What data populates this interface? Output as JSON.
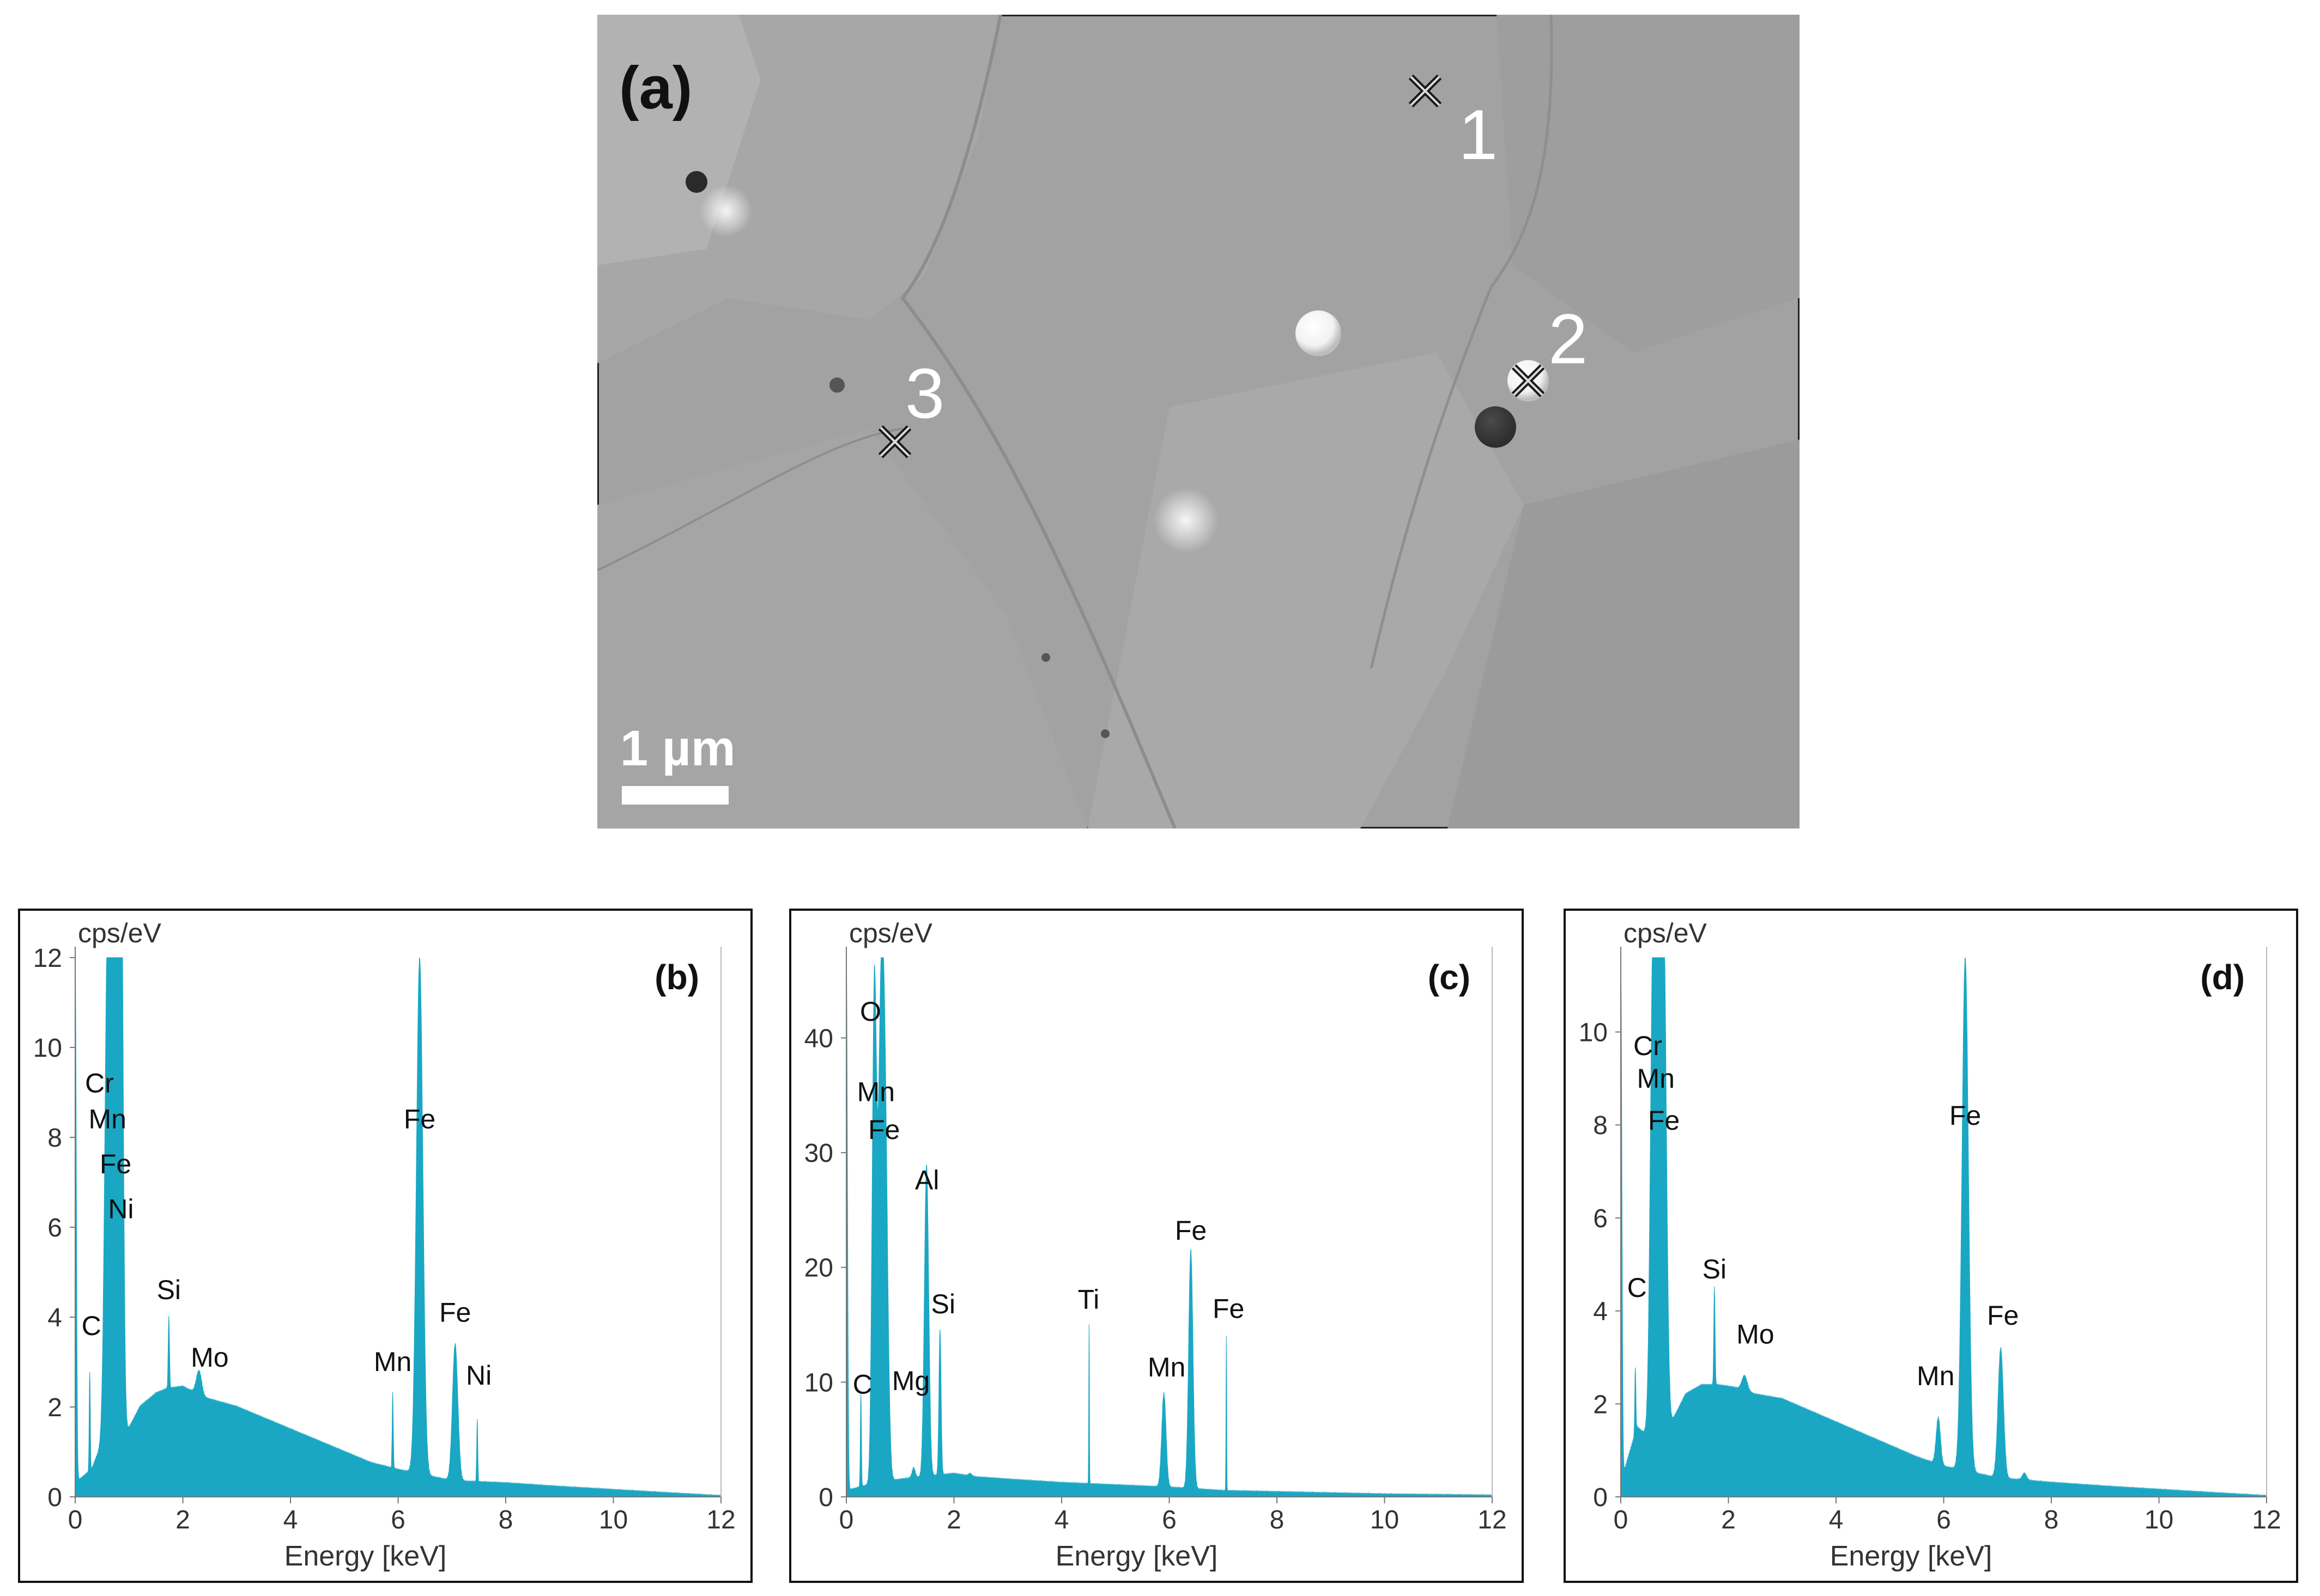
{
  "figure": {
    "sem_image": {
      "panel_label": "(a)",
      "scale_bar_label": "1 µm",
      "markers": [
        {
          "label": "1",
          "type": "cross-marker"
        },
        {
          "label": "2",
          "type": "cross-marker"
        },
        {
          "label": "3",
          "type": "cross-marker"
        }
      ]
    }
  },
  "chart_data": [
    {
      "type": "area",
      "panel_label": "(b)",
      "ylabel": "cps/eV",
      "xlabel": "Energy [keV]",
      "xlim": [
        0,
        12
      ],
      "ylim": [
        0,
        12
      ],
      "x_ticks": [
        0,
        2,
        4,
        6,
        8,
        10,
        12
      ],
      "y_ticks": [
        0,
        2,
        4,
        6,
        8,
        10,
        12
      ],
      "color": "#1aa7c4",
      "continuum": [
        [
          0,
          0.3
        ],
        [
          0.3,
          0.6
        ],
        [
          0.5,
          1.2
        ],
        [
          0.9,
          1.3
        ],
        [
          1.2,
          2.0
        ],
        [
          1.5,
          2.3
        ],
        [
          1.7,
          2.4
        ],
        [
          2.0,
          2.45
        ],
        [
          2.4,
          2.2
        ],
        [
          3.0,
          2.0
        ],
        [
          4.0,
          1.5
        ],
        [
          5.0,
          1.0
        ],
        [
          5.5,
          0.75
        ],
        [
          6.0,
          0.6
        ],
        [
          7.0,
          0.35
        ],
        [
          8.0,
          0.3
        ],
        [
          9.0,
          0.22
        ],
        [
          10.0,
          0.15
        ],
        [
          11.0,
          0.08
        ],
        [
          11.9,
          0.02
        ]
      ],
      "peaks": [
        {
          "x": 0.0,
          "y": 12.0,
          "w": 0.02,
          "label": ""
        },
        {
          "x": 0.27,
          "y": 2.8,
          "w": 0.01,
          "label": "C"
        },
        {
          "x": 0.6,
          "y": 12.0,
          "w": 0.05,
          "label": "Cr"
        },
        {
          "x": 0.7,
          "y": 12.0,
          "w": 0.05,
          "label": "Mn"
        },
        {
          "x": 0.8,
          "y": 12.0,
          "w": 0.05,
          "label": "Fe"
        },
        {
          "x": 0.85,
          "y": 12.0,
          "w": 0.04,
          "label": "Ni"
        },
        {
          "x": 1.74,
          "y": 4.0,
          "w": 0.012,
          "label": "Si"
        },
        {
          "x": 2.3,
          "y": 2.8,
          "w": 0.05,
          "label": "Mo"
        },
        {
          "x": 5.9,
          "y": 2.3,
          "w": 0.01,
          "label": "Mn"
        },
        {
          "x": 6.4,
          "y": 12.0,
          "w": 0.06,
          "label": "Fe"
        },
        {
          "x": 7.06,
          "y": 3.4,
          "w": 0.05,
          "label": "Fe"
        },
        {
          "x": 7.47,
          "y": 1.7,
          "w": 0.01,
          "label": "Ni"
        }
      ],
      "labels": [
        {
          "text": "C",
          "x": 0.3,
          "y": 3.6
        },
        {
          "text": "Cr",
          "x": 0.45,
          "y": 9.0
        },
        {
          "text": "Mn",
          "x": 0.6,
          "y": 8.2
        },
        {
          "text": "Fe",
          "x": 0.75,
          "y": 7.2
        },
        {
          "text": "Ni",
          "x": 0.85,
          "y": 6.2
        },
        {
          "text": "Si",
          "x": 1.74,
          "y": 4.4
        },
        {
          "text": "Mo",
          "x": 2.5,
          "y": 2.9
        },
        {
          "text": "Mn",
          "x": 5.9,
          "y": 2.8
        },
        {
          "text": "Fe",
          "x": 6.4,
          "y": 8.2
        },
        {
          "text": "Fe",
          "x": 7.06,
          "y": 3.9
        },
        {
          "text": "Ni",
          "x": 7.5,
          "y": 2.5
        }
      ]
    },
    {
      "type": "area",
      "panel_label": "(c)",
      "ylabel": "cps/eV",
      "xlabel": "Energy [keV]",
      "xlim": [
        0,
        12
      ],
      "ylim": [
        0,
        47
      ],
      "x_ticks": [
        0,
        2,
        4,
        6,
        8,
        10,
        12
      ],
      "y_ticks": [
        0,
        10,
        20,
        30,
        40
      ],
      "color": "#1aa7c4",
      "continuum": [
        [
          0,
          0.5
        ],
        [
          0.4,
          1.0
        ],
        [
          1.0,
          1.5
        ],
        [
          2.0,
          2.0
        ],
        [
          2.4,
          1.7
        ],
        [
          3.0,
          1.5
        ],
        [
          4.0,
          1.2
        ],
        [
          5.0,
          1.0
        ],
        [
          6.0,
          0.8
        ],
        [
          7.0,
          0.5
        ],
        [
          8.0,
          0.4
        ],
        [
          9.0,
          0.3
        ],
        [
          10.0,
          0.2
        ],
        [
          11.0,
          0.15
        ],
        [
          11.9,
          0.1
        ]
      ],
      "peaks": [
        {
          "x": 0.0,
          "y": 47.0,
          "w": 0.02,
          "label": ""
        },
        {
          "x": 0.27,
          "y": 9.0,
          "w": 0.01,
          "label": "C"
        },
        {
          "x": 0.52,
          "y": 44.0,
          "w": 0.04,
          "label": "O"
        },
        {
          "x": 0.64,
          "y": 38.0,
          "w": 0.05,
          "label": "Mn"
        },
        {
          "x": 0.72,
          "y": 30.0,
          "w": 0.05,
          "label": "Fe"
        },
        {
          "x": 1.25,
          "y": 2.5,
          "w": 0.03,
          "label": "Mg"
        },
        {
          "x": 1.49,
          "y": 29.0,
          "w": 0.04,
          "label": "Al"
        },
        {
          "x": 1.74,
          "y": 14.5,
          "w": 0.02,
          "label": "Si"
        },
        {
          "x": 2.3,
          "y": 2.0,
          "w": 0.03,
          "label": ""
        },
        {
          "x": 4.51,
          "y": 15.0,
          "w": 0.006,
          "label": "Ti"
        },
        {
          "x": 5.9,
          "y": 9.0,
          "w": 0.04,
          "label": "Mn"
        },
        {
          "x": 6.4,
          "y": 21.5,
          "w": 0.04,
          "label": "Fe"
        },
        {
          "x": 7.06,
          "y": 14.0,
          "w": 0.006,
          "label": "Fe"
        }
      ],
      "labels": [
        {
          "text": "C",
          "x": 0.3,
          "y": 9.0
        },
        {
          "text": "O",
          "x": 0.45,
          "y": 41.5
        },
        {
          "text": "Mn",
          "x": 0.55,
          "y": 34.5
        },
        {
          "text": "Fe",
          "x": 0.7,
          "y": 31.2
        },
        {
          "text": "Mg",
          "x": 1.2,
          "y": 9.3
        },
        {
          "text": "Al",
          "x": 1.5,
          "y": 26.8
        },
        {
          "text": "Si",
          "x": 1.8,
          "y": 16.0
        },
        {
          "text": "Ti",
          "x": 4.5,
          "y": 16.4
        },
        {
          "text": "Mn",
          "x": 5.95,
          "y": 10.5
        },
        {
          "text": "Fe",
          "x": 6.4,
          "y": 22.4
        },
        {
          "text": "Fe",
          "x": 7.1,
          "y": 15.6
        }
      ]
    },
    {
      "type": "area",
      "panel_label": "(d)",
      "ylabel": "cps/eV",
      "xlabel": "Energy [keV]",
      "xlim": [
        0,
        12
      ],
      "ylim": [
        0,
        11.6
      ],
      "x_ticks": [
        0,
        2,
        4,
        6,
        8,
        10,
        12
      ],
      "y_ticks": [
        0,
        2,
        4,
        6,
        8,
        10
      ],
      "color": "#1aa7c4",
      "continuum": [
        [
          0,
          0.3
        ],
        [
          0.3,
          1.5
        ],
        [
          0.5,
          1.3
        ],
        [
          0.9,
          1.5
        ],
        [
          1.2,
          2.2
        ],
        [
          1.5,
          2.4
        ],
        [
          1.8,
          2.4
        ],
        [
          2.1,
          2.35
        ],
        [
          2.5,
          2.2
        ],
        [
          3.0,
          2.1
        ],
        [
          4.0,
          1.6
        ],
        [
          5.0,
          1.1
        ],
        [
          5.5,
          0.85
        ],
        [
          6.0,
          0.65
        ],
        [
          7.0,
          0.4
        ],
        [
          8.0,
          0.3
        ],
        [
          9.0,
          0.22
        ],
        [
          10.0,
          0.15
        ],
        [
          11.0,
          0.08
        ],
        [
          11.9,
          0.02
        ]
      ],
      "peaks": [
        {
          "x": 0.0,
          "y": 11.6,
          "w": 0.02,
          "label": ""
        },
        {
          "x": 0.27,
          "y": 2.8,
          "w": 0.01,
          "label": "C"
        },
        {
          "x": 0.6,
          "y": 11.6,
          "w": 0.05,
          "label": "Cr"
        },
        {
          "x": 0.7,
          "y": 11.6,
          "w": 0.05,
          "label": "Mn"
        },
        {
          "x": 0.8,
          "y": 11.6,
          "w": 0.05,
          "label": "Fe"
        },
        {
          "x": 1.74,
          "y": 4.5,
          "w": 0.012,
          "label": "Si"
        },
        {
          "x": 2.3,
          "y": 2.6,
          "w": 0.05,
          "label": "Mo"
        },
        {
          "x": 5.9,
          "y": 1.7,
          "w": 0.04,
          "label": "Mn"
        },
        {
          "x": 6.4,
          "y": 11.6,
          "w": 0.06,
          "label": "Fe"
        },
        {
          "x": 7.06,
          "y": 3.2,
          "w": 0.05,
          "label": "Fe"
        },
        {
          "x": 7.5,
          "y": 0.5,
          "w": 0.04,
          "label": ""
        }
      ],
      "labels": [
        {
          "text": "C",
          "x": 0.3,
          "y": 4.3
        },
        {
          "text": "Cr",
          "x": 0.5,
          "y": 9.5
        },
        {
          "text": "Mn",
          "x": 0.65,
          "y": 8.8
        },
        {
          "text": "Fe",
          "x": 0.8,
          "y": 7.9
        },
        {
          "text": "Si",
          "x": 1.74,
          "y": 4.7
        },
        {
          "text": "Mo",
          "x": 2.5,
          "y": 3.3
        },
        {
          "text": "Mn",
          "x": 5.85,
          "y": 2.4
        },
        {
          "text": "Fe",
          "x": 6.4,
          "y": 8.0
        },
        {
          "text": "Fe",
          "x": 7.1,
          "y": 3.7
        }
      ]
    }
  ]
}
